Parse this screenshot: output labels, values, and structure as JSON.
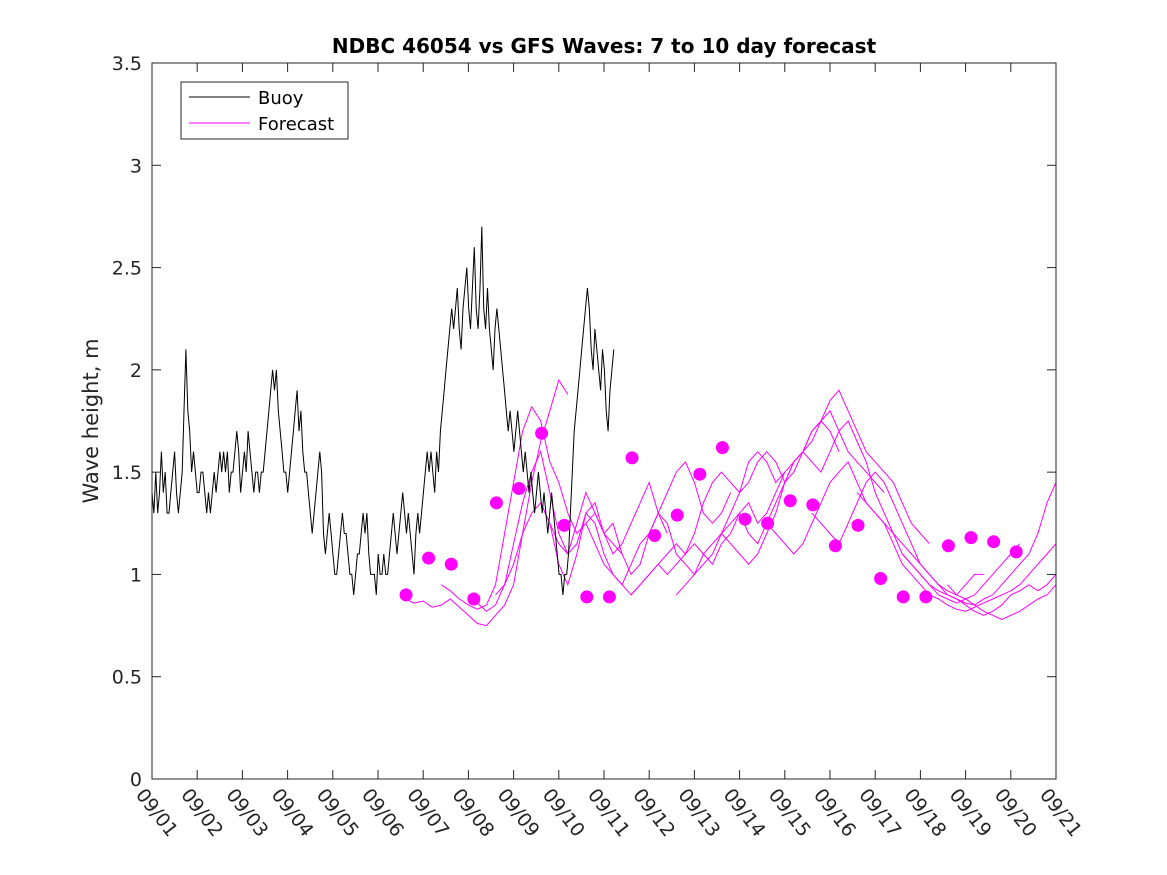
{
  "chart_data": {
    "type": "line",
    "title": "NDBC 46054 vs GFS Waves: 7 to 10 day forecast",
    "xlabel": "",
    "ylabel": "Wave height, m",
    "xlim": [
      0,
      20
    ],
    "ylim": [
      0,
      3.5
    ],
    "yticks": [
      0,
      0.5,
      1,
      1.5,
      2,
      2.5,
      3,
      3.5
    ],
    "ytick_labels": [
      "0",
      "0.5",
      "1",
      "1.5",
      "2",
      "2.5",
      "3",
      "3.5"
    ],
    "xtick_labels": [
      "09/01",
      "09/02",
      "09/03",
      "09/04",
      "09/05",
      "09/06",
      "09/07",
      "09/08",
      "09/09",
      "09/10",
      "09/11",
      "09/12",
      "09/13",
      "09/14",
      "09/15",
      "09/16",
      "09/17",
      "09/18",
      "09/19",
      "09/20",
      "09/21"
    ],
    "legend": {
      "placement": "top-left",
      "entries": [
        {
          "label": "Buoy",
          "color": "#000000"
        },
        {
          "label": "Forecast",
          "color": "#ff00ff"
        }
      ]
    },
    "colors": {
      "buoy": "#000000",
      "forecast": "#ff00ff",
      "axis": "#262626"
    },
    "series": [
      {
        "name": "Buoy",
        "x_start": 0,
        "x_step": 0.0417,
        "values": [
          1.4,
          1.3,
          1.5,
          1.3,
          1.4,
          1.6,
          1.4,
          1.5,
          1.3,
          1.3,
          1.4,
          1.5,
          1.6,
          1.4,
          1.3,
          1.4,
          1.5,
          1.8,
          2.1,
          1.8,
          1.7,
          1.5,
          1.6,
          1.5,
          1.4,
          1.4,
          1.5,
          1.5,
          1.4,
          1.3,
          1.4,
          1.3,
          1.4,
          1.5,
          1.4,
          1.5,
          1.6,
          1.5,
          1.6,
          1.5,
          1.6,
          1.4,
          1.5,
          1.5,
          1.6,
          1.7,
          1.6,
          1.4,
          1.5,
          1.6,
          1.5,
          1.7,
          1.6,
          1.5,
          1.4,
          1.5,
          1.5,
          1.4,
          1.5,
          1.5,
          1.6,
          1.7,
          1.8,
          1.9,
          2.0,
          1.9,
          2.0,
          1.8,
          1.7,
          1.6,
          1.5,
          1.5,
          1.4,
          1.5,
          1.6,
          1.7,
          1.8,
          1.9,
          1.7,
          1.8,
          1.6,
          1.5,
          1.5,
          1.4,
          1.3,
          1.2,
          1.3,
          1.4,
          1.5,
          1.6,
          1.5,
          1.2,
          1.1,
          1.2,
          1.3,
          1.2,
          1.1,
          1.0,
          1.0,
          1.1,
          1.2,
          1.3,
          1.2,
          1.2,
          1.1,
          1.0,
          1.0,
          0.9,
          1.0,
          1.1,
          1.1,
          1.2,
          1.3,
          1.2,
          1.3,
          1.1,
          1.0,
          1.0,
          1.0,
          0.9,
          1.1,
          1.0,
          1.0,
          1.1,
          1.0,
          1.0,
          1.1,
          1.2,
          1.3,
          1.2,
          1.1,
          1.2,
          1.3,
          1.4,
          1.3,
          1.2,
          1.3,
          1.2,
          1.1,
          1.0,
          1.2,
          1.3,
          1.2,
          1.3,
          1.4,
          1.5,
          1.6,
          1.5,
          1.6,
          1.5,
          1.4,
          1.6,
          1.5,
          1.7,
          1.8,
          1.9,
          2.0,
          2.1,
          2.2,
          2.3,
          2.2,
          2.3,
          2.4,
          2.2,
          2.1,
          2.3,
          2.4,
          2.5,
          2.3,
          2.2,
          2.4,
          2.6,
          2.3,
          2.2,
          2.4,
          2.7,
          2.3,
          2.2,
          2.4,
          2.2,
          2.1,
          2.0,
          2.2,
          2.3,
          2.2,
          2.1,
          2.0,
          1.9,
          1.8,
          1.7,
          1.8,
          1.7,
          1.6,
          1.7,
          1.8,
          1.7,
          1.6,
          1.5,
          1.6,
          1.5,
          1.4,
          1.5,
          1.4,
          1.3,
          1.4,
          1.5,
          1.4,
          1.3,
          1.4,
          1.3,
          1.2,
          1.3,
          1.4,
          1.3,
          1.2,
          1.1,
          1.0,
          1.0,
          0.9,
          1.0,
          1.0,
          1.1,
          1.3,
          1.5,
          1.7,
          1.8,
          1.9,
          2.0,
          2.1,
          2.2,
          2.3,
          2.4,
          2.3,
          2.1,
          2.0,
          2.2,
          2.1,
          2.0,
          1.9,
          2.1,
          2.0,
          1.8,
          1.7,
          1.9,
          2.0,
          2.1
        ]
      },
      {
        "name": "Forecast run 1",
        "x": [
          5.6,
          5.8,
          6.0,
          6.2,
          6.4,
          6.6,
          6.8,
          7.0,
          7.2,
          7.4,
          7.6,
          7.8,
          8.0,
          8.2,
          8.4,
          8.6,
          8.8,
          9.0,
          9.2
        ],
        "values": [
          0.88,
          0.86,
          0.87,
          0.84,
          0.85,
          0.88,
          0.84,
          0.8,
          0.76,
          0.75,
          0.8,
          0.85,
          0.95,
          1.2,
          1.45,
          1.65,
          1.8,
          1.95,
          1.88
        ]
      },
      {
        "name": "Forecast run 2",
        "x": [
          6.4,
          6.6,
          6.8,
          7.0,
          7.2,
          7.4,
          7.6,
          7.8,
          8.0,
          8.2,
          8.4,
          8.6,
          8.8,
          9.0,
          9.2,
          9.4,
          9.6,
          9.8,
          10.0,
          10.2,
          10.4
        ],
        "values": [
          0.95,
          0.92,
          0.88,
          0.85,
          0.83,
          0.85,
          0.95,
          1.2,
          1.45,
          1.7,
          1.82,
          1.75,
          1.55,
          1.45,
          1.3,
          1.2,
          1.25,
          1.3,
          1.2,
          1.15,
          1.1
        ]
      },
      {
        "name": "Forecast run 3",
        "x": [
          7.0,
          7.2,
          7.4,
          7.6,
          7.8,
          8.0,
          8.2,
          8.4,
          8.6,
          8.8,
          9.0,
          9.2,
          9.4,
          9.6,
          9.8,
          10.0,
          10.2,
          10.4,
          10.6,
          10.8,
          11.0,
          11.2,
          11.4
        ],
        "values": [
          0.9,
          0.86,
          0.82,
          0.85,
          0.95,
          1.15,
          1.35,
          1.5,
          1.6,
          1.4,
          1.2,
          1.1,
          1.15,
          1.3,
          1.35,
          1.2,
          1.1,
          1.15,
          1.25,
          1.35,
          1.45,
          1.3,
          1.2
        ]
      },
      {
        "name": "Forecast run 4",
        "x": [
          7.6,
          7.8,
          8.0,
          8.2,
          8.4,
          8.6,
          8.8,
          9.0,
          9.2,
          9.4,
          9.6,
          9.8,
          10.0,
          10.2,
          10.4,
          10.6,
          10.8,
          11.0,
          11.2,
          11.4,
          11.6,
          11.8,
          12.0,
          12.2,
          12.4,
          12.6,
          12.8
        ],
        "values": [
          0.9,
          0.95,
          1.05,
          1.2,
          1.3,
          1.35,
          1.25,
          1.15,
          1.1,
          1.25,
          1.4,
          1.3,
          1.2,
          1.25,
          1.1,
          1.0,
          1.05,
          1.2,
          1.3,
          1.4,
          1.5,
          1.55,
          1.45,
          1.3,
          1.25,
          1.3,
          1.4
        ]
      },
      {
        "name": "Forecast run 5",
        "x": [
          8.6,
          8.8,
          9.0,
          9.2,
          9.4,
          9.6,
          9.8,
          10.0,
          10.2,
          10.4,
          10.6,
          10.8,
          11.0,
          11.2,
          11.4,
          11.6,
          11.8,
          12.0,
          12.2,
          12.4,
          12.6,
          12.8,
          13.0,
          13.2,
          13.4,
          13.6,
          13.8,
          14.0
        ],
        "values": [
          1.35,
          1.25,
          1.05,
          0.95,
          1.1,
          1.3,
          1.25,
          1.1,
          1.0,
          0.95,
          1.05,
          1.15,
          1.2,
          1.3,
          1.25,
          1.1,
          1.05,
          1.0,
          1.1,
          1.15,
          1.2,
          1.3,
          1.4,
          1.55,
          1.6,
          1.55,
          1.45,
          1.5
        ]
      },
      {
        "name": "Forecast run 6",
        "x": [
          9.6,
          9.8,
          10.0,
          10.2,
          10.4,
          10.6,
          10.8,
          11.0,
          11.2,
          11.4,
          11.6,
          11.8,
          12.0,
          12.2,
          12.4,
          12.6,
          12.8,
          13.0,
          13.2,
          13.4,
          13.6,
          13.8,
          14.0,
          14.2,
          14.4,
          14.6,
          14.8,
          15.0,
          15.2
        ],
        "values": [
          1.25,
          1.15,
          1.05,
          1.0,
          0.95,
          0.9,
          0.95,
          1.0,
          1.05,
          1.1,
          1.15,
          1.1,
          1.2,
          1.35,
          1.45,
          1.5,
          1.45,
          1.4,
          1.45,
          1.55,
          1.6,
          1.55,
          1.45,
          1.5,
          1.6,
          1.7,
          1.75,
          1.7,
          1.6
        ]
      },
      {
        "name": "Forecast run 7",
        "x": [
          10.6,
          10.8,
          11.0,
          11.2,
          11.4,
          11.6,
          11.8,
          12.0,
          12.2,
          12.4,
          12.6,
          12.8,
          13.0,
          13.2,
          13.4,
          13.6,
          13.8,
          14.0,
          14.2,
          14.4,
          14.6,
          14.8,
          15.0,
          15.2,
          15.4,
          15.6,
          15.8,
          16.0,
          16.2
        ],
        "values": [
          0.9,
          0.95,
          1.0,
          1.05,
          1.0,
          1.05,
          1.1,
          1.15,
          1.1,
          1.05,
          1.15,
          1.2,
          1.3,
          1.35,
          1.25,
          1.3,
          1.4,
          1.5,
          1.55,
          1.6,
          1.65,
          1.75,
          1.8,
          1.7,
          1.6,
          1.55,
          1.5,
          1.45,
          1.4
        ]
      },
      {
        "name": "Forecast run 8",
        "x": [
          11.6,
          11.8,
          12.0,
          12.2,
          12.4,
          12.6,
          12.8,
          13.0,
          13.2,
          13.4,
          13.6,
          13.8,
          14.0,
          14.2,
          14.4,
          14.6,
          14.8,
          15.0,
          15.2,
          15.4,
          15.6,
          15.8,
          16.0,
          16.2,
          16.4,
          16.6,
          16.8,
          17.0,
          17.2
        ],
        "values": [
          0.9,
          0.95,
          1.0,
          1.05,
          1.1,
          1.2,
          1.25,
          1.3,
          1.2,
          1.15,
          1.25,
          1.35,
          1.45,
          1.55,
          1.6,
          1.7,
          1.75,
          1.85,
          1.9,
          1.8,
          1.7,
          1.6,
          1.55,
          1.5,
          1.45,
          1.35,
          1.25,
          1.2,
          1.15
        ]
      },
      {
        "name": "Forecast run 9",
        "x": [
          12.6,
          12.8,
          13.0,
          13.2,
          13.4,
          13.6,
          13.8,
          14.0,
          14.2,
          14.4,
          14.6,
          14.8,
          15.0,
          15.2,
          15.4,
          15.6,
          15.8,
          16.0,
          16.2,
          16.4,
          16.6,
          16.8,
          17.0,
          17.2,
          17.4,
          17.6,
          17.8,
          18.0,
          18.2,
          18.4
        ],
        "values": [
          1.2,
          1.15,
          1.1,
          1.05,
          1.1,
          1.2,
          1.3,
          1.45,
          1.55,
          1.6,
          1.55,
          1.5,
          1.6,
          1.7,
          1.75,
          1.65,
          1.55,
          1.4,
          1.3,
          1.2,
          1.15,
          1.1,
          1.05,
          1.0,
          0.95,
          0.92,
          0.9,
          0.95,
          1.0,
          1.0
        ]
      },
      {
        "name": "Forecast run 10",
        "x": [
          13.6,
          13.8,
          14.0,
          14.2,
          14.4,
          14.6,
          14.8,
          15.0,
          15.2,
          15.4,
          15.6,
          15.8,
          16.0,
          16.2,
          16.4,
          16.6,
          16.8,
          17.0,
          17.2,
          17.4,
          17.6,
          17.8,
          18.0,
          18.2,
          18.4,
          18.6,
          18.8,
          19.0,
          19.2
        ],
        "values": [
          1.25,
          1.2,
          1.15,
          1.1,
          1.15,
          1.25,
          1.35,
          1.45,
          1.5,
          1.55,
          1.45,
          1.35,
          1.3,
          1.25,
          1.2,
          1.1,
          1.05,
          1.0,
          0.95,
          0.9,
          0.88,
          0.86,
          0.88,
          0.9,
          0.95,
          1.0,
          1.05,
          1.1,
          1.15
        ]
      },
      {
        "name": "Forecast run 11",
        "x": [
          14.6,
          14.8,
          15.0,
          15.2,
          15.4,
          15.6,
          15.8,
          16.0,
          16.2,
          16.4,
          16.6,
          16.8,
          17.0,
          17.2,
          17.4,
          17.6,
          17.8,
          18.0,
          18.2,
          18.4,
          18.6,
          18.8,
          19.0,
          19.2,
          19.4,
          19.6,
          19.8,
          20.0
        ],
        "values": [
          1.3,
          1.25,
          1.2,
          1.15,
          1.25,
          1.35,
          1.45,
          1.5,
          1.45,
          1.35,
          1.25,
          1.15,
          1.05,
          1.0,
          0.95,
          0.9,
          0.88,
          0.86,
          0.85,
          0.88,
          0.9,
          0.95,
          1.0,
          1.05,
          1.1,
          1.2,
          1.35,
          1.45
        ]
      },
      {
        "name": "Forecast run 12",
        "x": [
          15.6,
          15.8,
          16.0,
          16.2,
          16.4,
          16.6,
          16.8,
          17.0,
          17.2,
          17.4,
          17.6,
          17.8,
          18.0,
          18.2,
          18.4,
          18.6,
          18.8,
          19.0,
          19.2,
          19.4,
          19.6,
          19.8,
          20.0
        ],
        "values": [
          1.4,
          1.35,
          1.3,
          1.25,
          1.15,
          1.05,
          1.0,
          0.95,
          0.9,
          0.88,
          0.85,
          0.83,
          0.82,
          0.84,
          0.86,
          0.88,
          0.9,
          0.92,
          0.95,
          1.0,
          1.05,
          1.1,
          1.15
        ]
      },
      {
        "name": "Forecast run 13",
        "x": [
          16.6,
          16.8,
          17.0,
          17.2,
          17.4,
          17.6,
          17.8,
          18.0,
          18.2,
          18.4,
          18.6,
          18.8,
          19.0,
          19.2,
          19.4,
          19.6,
          19.8,
          20.0
        ],
        "values": [
          1.1,
          1.05,
          1.0,
          0.95,
          0.92,
          0.9,
          0.88,
          0.85,
          0.82,
          0.8,
          0.82,
          0.85,
          0.9,
          0.92,
          0.95,
          0.92,
          0.95,
          1.0
        ]
      },
      {
        "name": "Forecast run 14",
        "x": [
          17.6,
          17.8,
          18.0,
          18.2,
          18.4,
          18.6,
          18.8,
          19.0,
          19.2,
          19.4,
          19.6,
          19.8,
          20.0
        ],
        "values": [
          0.95,
          0.9,
          0.88,
          0.85,
          0.82,
          0.8,
          0.78,
          0.8,
          0.82,
          0.85,
          0.88,
          0.9,
          0.95
        ]
      },
      {
        "name": "Forecast markers",
        "marker": "filled-circle",
        "x": [
          5.62,
          6.12,
          6.62,
          7.12,
          7.62,
          8.12,
          8.62,
          9.12,
          9.62,
          10.12,
          10.62,
          11.12,
          11.62,
          12.12,
          12.62,
          13.12,
          13.62,
          14.12,
          14.62,
          15.12,
          15.62,
          16.12,
          16.62,
          17.12,
          17.62,
          18.12,
          18.62,
          19.12
        ],
        "values": [
          0.9,
          1.08,
          1.05,
          0.88,
          1.35,
          1.42,
          1.69,
          1.24,
          0.89,
          0.89,
          1.57,
          1.19,
          1.29,
          1.49,
          1.62,
          1.27,
          1.25,
          1.36,
          1.34,
          1.14,
          1.24,
          0.98,
          0.89,
          0.89,
          1.14,
          1.18,
          1.16,
          1.11
        ]
      }
    ]
  }
}
